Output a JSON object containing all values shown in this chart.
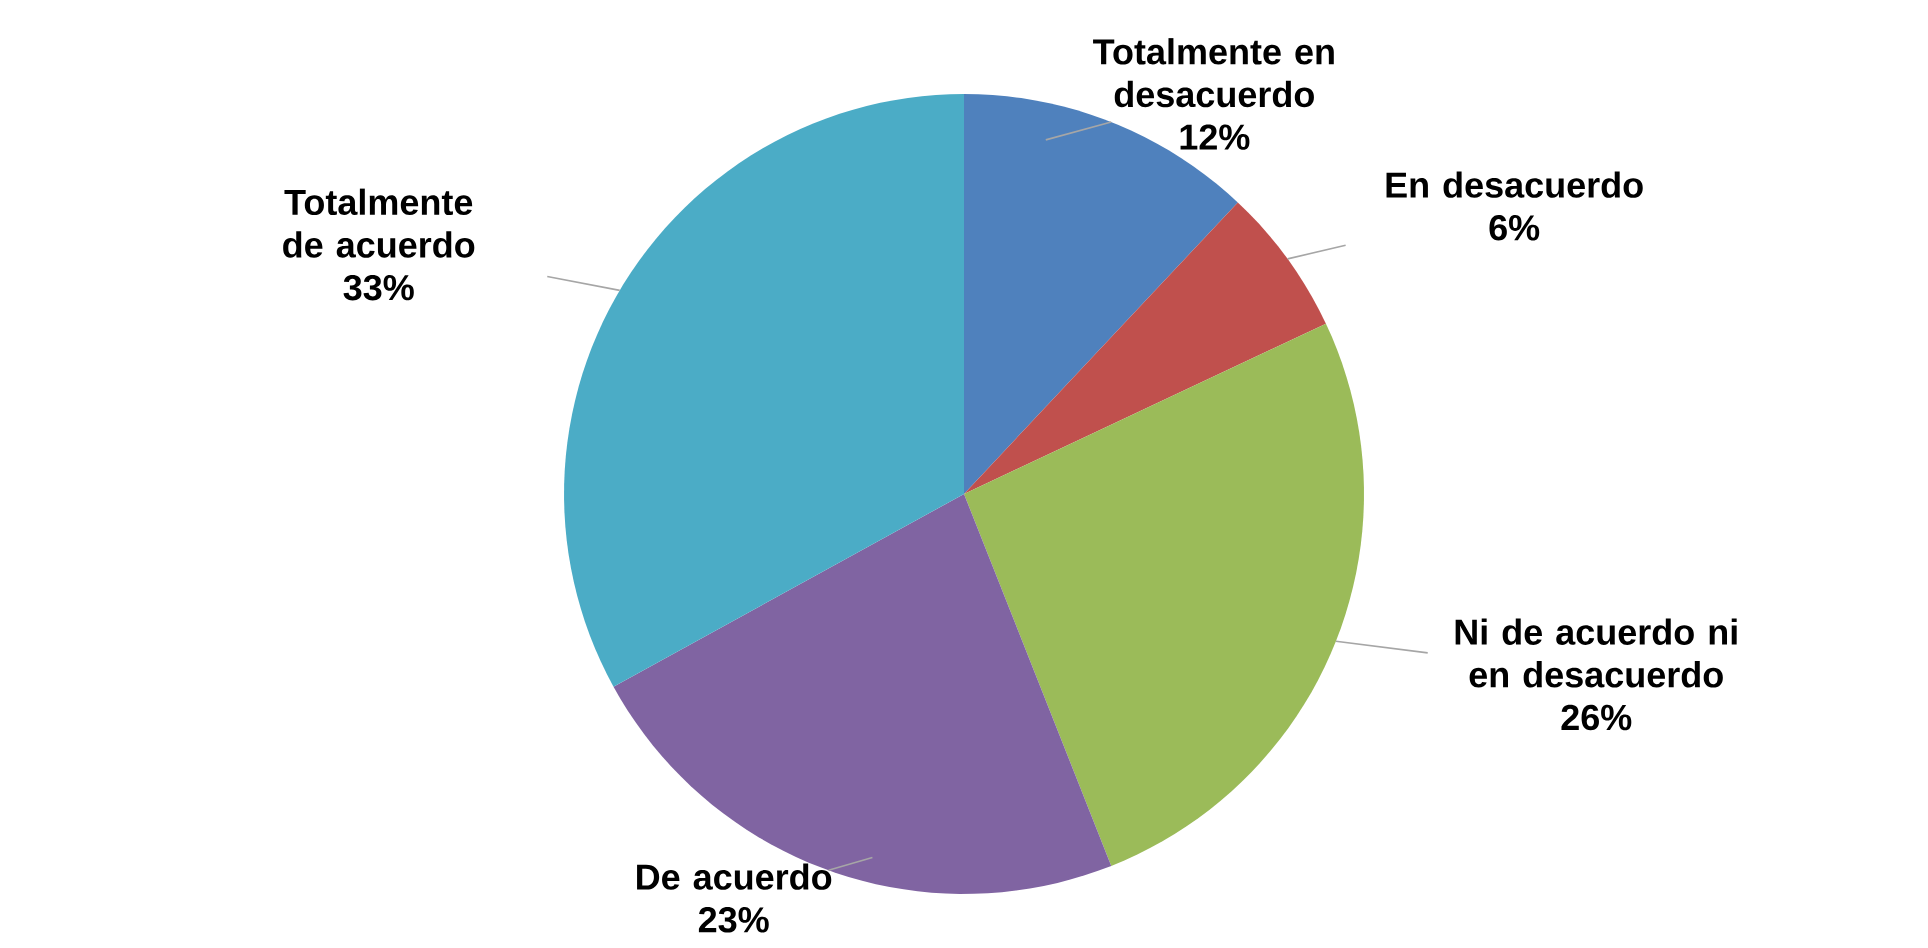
{
  "chart_data": {
    "type": "pie",
    "categories": [
      "Totalmente en desacuerdo",
      "En desacuerdo",
      "Ni de acuerdo ni en desacuerdo",
      "De acuerdo",
      "Totalmente de acuerdo"
    ],
    "values": [
      12,
      6,
      26,
      23,
      33
    ],
    "value_labels": [
      "12%",
      "6%",
      "26%",
      "23%",
      "33%"
    ],
    "colors": [
      "#4f81bd",
      "#c0504d",
      "#9bbb59",
      "#8064a2",
      "#4bacc6"
    ]
  }
}
